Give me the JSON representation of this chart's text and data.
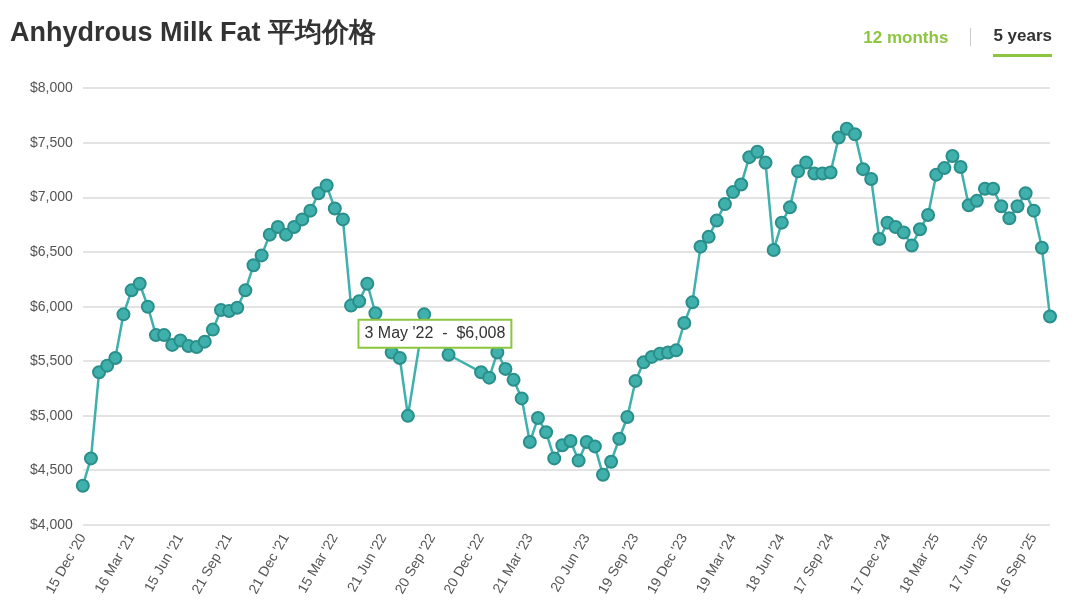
{
  "chart_data": {
    "type": "line",
    "title": "Anhydrous Milk Fat 平均价格",
    "categories": [
      "15 Dec '20",
      null,
      null,
      null,
      null,
      null,
      "16 Mar '21",
      null,
      null,
      null,
      null,
      null,
      "15 Jun '21",
      null,
      null,
      null,
      null,
      null,
      "21 Sep '21",
      null,
      null,
      null,
      null,
      null,
      null,
      "21 Dec '21",
      null,
      null,
      null,
      null,
      null,
      "15 Mar '22",
      null,
      null,
      null,
      null,
      null,
      "21 Jun '22",
      null,
      null,
      null,
      null,
      null,
      "20 Sep '22",
      null,
      null,
      null,
      null,
      null,
      "20 Dec '22",
      null,
      null,
      null,
      null,
      null,
      "21 Mar '23",
      null,
      null,
      null,
      null,
      null,
      null,
      "20 Jun '23",
      null,
      null,
      null,
      null,
      null,
      "19 Sep '23",
      null,
      null,
      null,
      null,
      null,
      "19 Dec '23",
      null,
      null,
      null,
      null,
      null,
      "19 Mar '24",
      null,
      null,
      null,
      null,
      null,
      "18 Jun '24",
      null,
      null,
      null,
      null,
      null,
      "17 Sep '24",
      null,
      null,
      null,
      null,
      null,
      null,
      "17 Dec '24",
      null,
      null,
      null,
      null,
      null,
      "18 Mar '25",
      null,
      null,
      null,
      null,
      null,
      "17 Jun '25",
      null,
      null,
      null,
      null,
      null,
      "16 Sep '25",
      null,
      null
    ],
    "series": [
      {
        "color": "#3fb0ac",
        "values": [
          4360,
          4610,
          5400,
          5460,
          5530,
          5930,
          6150,
          6210,
          6000,
          5740,
          5740,
          5650,
          5690,
          5640,
          5630,
          5680,
          5790,
          5970,
          5960,
          5990,
          6150,
          6380,
          6470,
          6660,
          6730,
          6660,
          6730,
          6800,
          6880,
          7040,
          7110,
          6900,
          6800,
          6010,
          6050,
          6210,
          5940,
          null,
          5580,
          5530,
          5000,
          null,
          5930,
          null,
          null,
          5560,
          null,
          null,
          null,
          5400,
          5350,
          5580,
          5430,
          5330,
          5160,
          4760,
          4980,
          4850,
          4610,
          4730,
          4770,
          4590,
          4760,
          4720,
          4460,
          4580,
          4790,
          4990,
          5320,
          5490,
          5540,
          5570,
          5580,
          5600,
          5850,
          6040,
          6550,
          6640,
          6790,
          6940,
          7050,
          7120,
          7370,
          7420,
          7320,
          6520,
          6770,
          6910,
          7240,
          7320,
          7220,
          7220,
          7230,
          7550,
          7630,
          7580,
          7260,
          7170,
          6620,
          6770,
          6730,
          6680,
          6560,
          6710,
          6840,
          7210,
          7270,
          7380,
          7280,
          6930,
          6970,
          7080,
          7080,
          6920,
          6810,
          6920,
          7040,
          6880,
          6540,
          5910
        ]
      }
    ],
    "ylim": [
      4000,
      8000
    ],
    "yticks": [
      {
        "value": 4000,
        "label": "$4,000"
      },
      {
        "value": 4500,
        "label": "$4,500"
      },
      {
        "value": 5000,
        "label": "$5,000"
      },
      {
        "value": 5500,
        "label": "$5,500"
      },
      {
        "value": 6000,
        "label": "$6,000"
      },
      {
        "value": 6500,
        "label": "$6,500"
      },
      {
        "value": 7000,
        "label": "$7,000"
      },
      {
        "value": 7500,
        "label": "$7,500"
      },
      {
        "value": 8000,
        "label": "$8,000"
      }
    ],
    "grid": "y",
    "legend": false,
    "marker": "circle",
    "line_style": "solid",
    "annotations": [
      "3 May '22  -  $6,008",
      "12 months",
      "5 years"
    ]
  }
}
